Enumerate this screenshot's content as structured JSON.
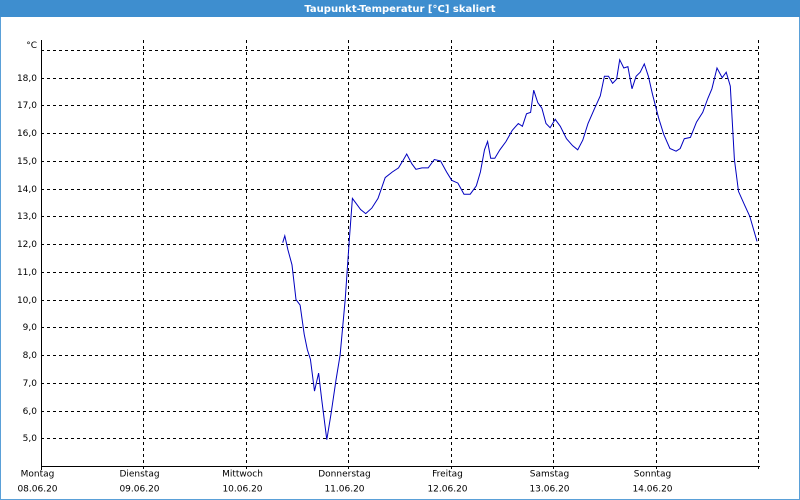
{
  "chart_data": {
    "type": "line",
    "title": "Taupunkt-Temperatur [°C] skaliert",
    "x": [
      2.36,
      2.38,
      2.41,
      2.45,
      2.49,
      2.53,
      2.57,
      2.6,
      2.63,
      2.67,
      2.71,
      2.74,
      2.79,
      2.83,
      2.88,
      2.92,
      2.97,
      3.01,
      3.04,
      3.08,
      3.12,
      3.17,
      3.23,
      3.29,
      3.36,
      3.43,
      3.49,
      3.54,
      3.57,
      3.62,
      3.66,
      3.72,
      3.78,
      3.84,
      3.9,
      3.96,
      4.01,
      4.07,
      4.13,
      4.19,
      4.25,
      4.29,
      4.33,
      4.36,
      4.39,
      4.43,
      4.48,
      4.54,
      4.6,
      4.66,
      4.7,
      4.74,
      4.78,
      4.81,
      4.85,
      4.89,
      4.93,
      4.97,
      5.02,
      5.07,
      5.13,
      5.19,
      5.24,
      5.29,
      5.34,
      5.4,
      5.46,
      5.5,
      5.54,
      5.58,
      5.62,
      5.65,
      5.69,
      5.73,
      5.77,
      5.81,
      5.85,
      5.89,
      5.93,
      5.97,
      6.03,
      6.08,
      6.14,
      6.2,
      6.24,
      6.28,
      6.34,
      6.4,
      6.46,
      6.51,
      6.55,
      6.6,
      6.65,
      6.69,
      6.73,
      6.77,
      6.81,
      6.87,
      6.92,
      6.99
    ],
    "series": [
      {
        "color": "#0000c0",
        "values": [
          12.05,
          12.3,
          11.8,
          11.25,
          10.0,
          9.8,
          8.75,
          8.2,
          7.85,
          6.7,
          7.35,
          6.4,
          4.95,
          5.85,
          7.1,
          8.0,
          10.0,
          12.15,
          13.65,
          13.45,
          13.25,
          13.1,
          13.3,
          13.65,
          14.4,
          14.6,
          14.75,
          15.05,
          15.25,
          14.9,
          14.7,
          14.75,
          14.75,
          15.05,
          15.0,
          14.6,
          14.3,
          14.2,
          13.8,
          13.8,
          14.1,
          14.6,
          15.4,
          15.7,
          15.1,
          15.1,
          15.4,
          15.7,
          16.1,
          16.35,
          16.25,
          16.7,
          16.75,
          17.55,
          17.1,
          16.9,
          16.35,
          16.2,
          16.5,
          16.25,
          15.8,
          15.55,
          15.4,
          15.75,
          16.35,
          16.85,
          17.35,
          18.05,
          18.05,
          17.8,
          17.95,
          18.65,
          18.35,
          18.4,
          17.6,
          18.05,
          18.2,
          18.5,
          18.05,
          17.4,
          16.55,
          15.95,
          15.45,
          15.35,
          15.45,
          15.8,
          15.85,
          16.4,
          16.75,
          17.25,
          17.6,
          18.35,
          18.0,
          18.2,
          17.7,
          15.05,
          13.9,
          13.4,
          13.0,
          12.1
        ]
      }
    ],
    "xlim": [
      0,
      7
    ],
    "xticks": [
      {
        "value": 0,
        "label": "08.06.20"
      },
      {
        "value": 1,
        "label": "09.06.20"
      },
      {
        "value": 2,
        "label": "10.06.20"
      },
      {
        "value": 3,
        "label": "11.06.20"
      },
      {
        "value": 4,
        "label": "12.06.20"
      },
      {
        "value": 5,
        "label": "13.06.20"
      },
      {
        "value": 6,
        "label": "14.06.20"
      },
      {
        "value": 7,
        "label": ""
      }
    ],
    "xtick_weekdays": [
      "Montag",
      "Dienstag",
      "Mittwoch",
      "Donnerstag",
      "Freitag",
      "Samstag",
      "Sonntag"
    ],
    "ylim": [
      4,
      19
    ],
    "yticks": [
      {
        "value": 5,
        "label": "5,0"
      },
      {
        "value": 6,
        "label": "6,0"
      },
      {
        "value": 7,
        "label": "7,0"
      },
      {
        "value": 8,
        "label": "8,0"
      },
      {
        "value": 9,
        "label": "9,0"
      },
      {
        "value": 10,
        "label": "10,0"
      },
      {
        "value": 11,
        "label": "11,0"
      },
      {
        "value": 12,
        "label": "12,0"
      },
      {
        "value": 13,
        "label": "13,0"
      },
      {
        "value": 14,
        "label": "14,0"
      },
      {
        "value": 15,
        "label": "15,0"
      },
      {
        "value": 16,
        "label": "16,0"
      },
      {
        "value": 17,
        "label": "17,0"
      },
      {
        "value": 18,
        "label": "18,0"
      },
      {
        "value": 19,
        "label": "°C"
      }
    ],
    "grid": true
  }
}
